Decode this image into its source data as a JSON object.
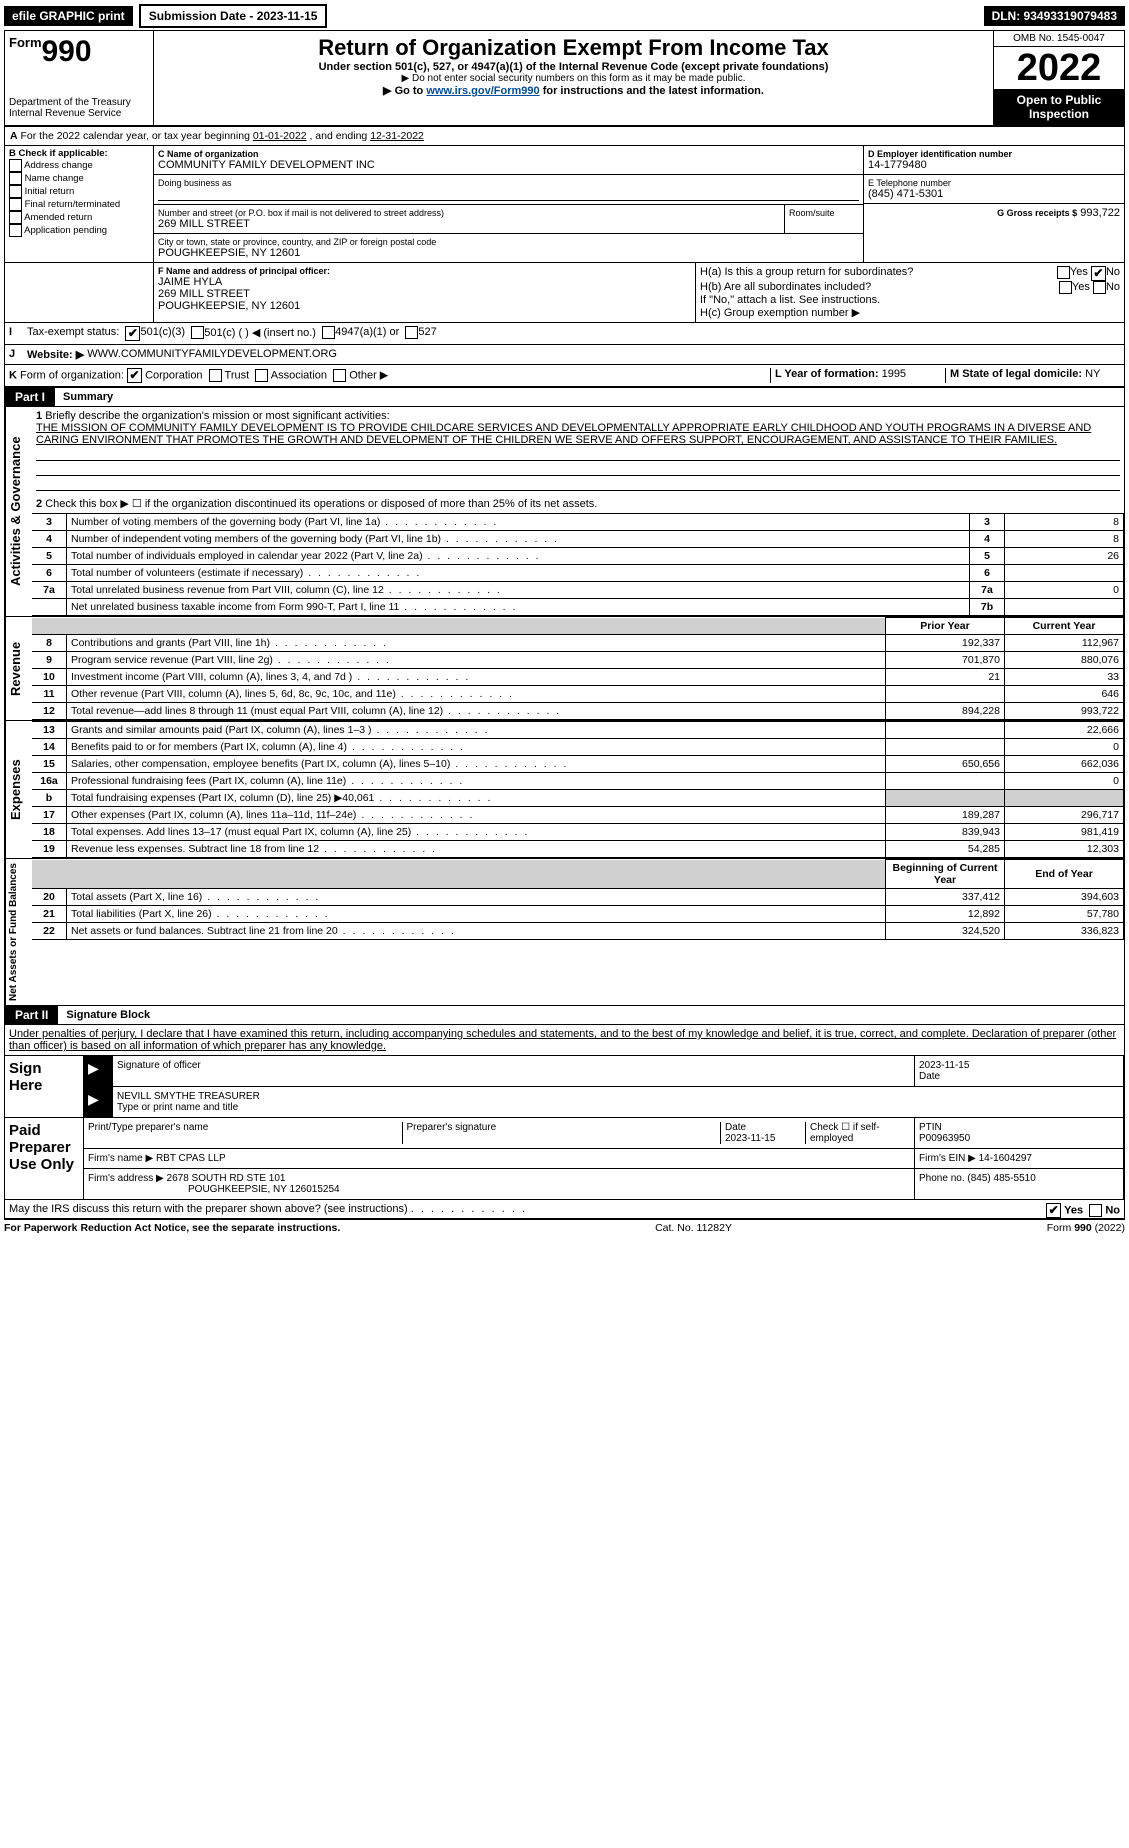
{
  "top": {
    "efile": "efile GRAPHIC print",
    "submission_label": "Submission Date - 2023-11-15",
    "dln": "DLN: 93493319079483"
  },
  "header": {
    "form_word": "Form",
    "form_num": "990",
    "dept": "Department of the Treasury",
    "irs": "Internal Revenue Service",
    "title": "Return of Organization Exempt From Income Tax",
    "sub": "Under section 501(c), 527, or 4947(a)(1) of the Internal Revenue Code (except private foundations)",
    "sub2": "▶ Do not enter social security numbers on this form as it may be made public.",
    "sub3_pre": "▶ Go to ",
    "sub3_link": "www.irs.gov/Form990",
    "sub3_post": " for instructions and the latest information.",
    "omb": "OMB No. 1545-0047",
    "year": "2022",
    "inspect": "Open to Public Inspection"
  },
  "A": {
    "text_pre": "For the 2022 calendar year, or tax year beginning ",
    "begin": "01-01-2022",
    "mid": " , and ending ",
    "end": "12-31-2022"
  },
  "B": {
    "label": "B Check if applicable:",
    "items": [
      "Address change",
      "Name change",
      "Initial return",
      "Final return/terminated",
      "Amended return",
      "Application pending"
    ]
  },
  "C": {
    "name_lbl": "C Name of organization",
    "name": "COMMUNITY FAMILY DEVELOPMENT INC",
    "dba_lbl": "Doing business as",
    "addr_lbl": "Number and street (or P.O. box if mail is not delivered to street address)",
    "room_lbl": "Room/suite",
    "addr": "269 MILL STREET",
    "city_lbl": "City or town, state or province, country, and ZIP or foreign postal code",
    "city": "POUGHKEEPSIE, NY  12601"
  },
  "D": {
    "lbl": "D Employer identification number",
    "val": "14-1779480"
  },
  "E": {
    "lbl": "E Telephone number",
    "val": "(845) 471-5301"
  },
  "G": {
    "lbl": "G Gross receipts $",
    "val": "993,722"
  },
  "F": {
    "lbl": "F Name and address of principal officer:",
    "name": "JAIME HYLA",
    "addr1": "269 MILL STREET",
    "addr2": "POUGHKEEPSIE, NY  12601"
  },
  "H": {
    "a": "H(a) Is this a group return for subordinates?",
    "b": "H(b) Are all subordinates included?",
    "b2": "If \"No,\" attach a list. See instructions.",
    "c": "H(c) Group exemption number ▶",
    "yes": "Yes",
    "no": "No"
  },
  "I": {
    "lbl": "Tax-exempt status:",
    "opts": [
      "501(c)(3)",
      "501(c) (   ) ◀ (insert no.)",
      "4947(a)(1) or",
      "527"
    ]
  },
  "J": {
    "lbl": "Website: ▶",
    "val": "WWW.COMMUNITYFAMILYDEVELOPMENT.ORG"
  },
  "K": {
    "lbl": "Form of organization:",
    "opts": [
      "Corporation",
      "Trust",
      "Association",
      "Other ▶"
    ]
  },
  "L": {
    "lbl": "L Year of formation:",
    "val": "1995"
  },
  "M": {
    "lbl": "M State of legal domicile:",
    "val": "NY"
  },
  "part1": {
    "head": "Part I",
    "title": "Summary",
    "l1": "Briefly describe the organization's mission or most significant activities:",
    "mission": "THE MISSION OF COMMUNITY FAMILY DEVELOPMENT IS TO PROVIDE CHILDCARE SERVICES AND DEVELOPMENTALLY APPROPRIATE EARLY CHILDHOOD AND YOUTH PROGRAMS IN A DIVERSE AND CARING ENVIRONMENT THAT PROMOTES THE GROWTH AND DEVELOPMENT OF THE CHILDREN WE SERVE AND OFFERS SUPPORT, ENCOURAGEMENT, AND ASSISTANCE TO THEIR FAMILIES.",
    "l2": "Check this box ▶ ☐ if the organization discontinued its operations or disposed of more than 25% of its net assets.",
    "vlabels": {
      "ag": "Activities & Governance",
      "rev": "Revenue",
      "exp": "Expenses",
      "na": "Net Assets or Fund Balances"
    },
    "rows_ag": [
      {
        "n": "3",
        "t": "Number of voting members of the governing body (Part VI, line 1a)",
        "box": "3",
        "v": "8"
      },
      {
        "n": "4",
        "t": "Number of independent voting members of the governing body (Part VI, line 1b)",
        "box": "4",
        "v": "8"
      },
      {
        "n": "5",
        "t": "Total number of individuals employed in calendar year 2022 (Part V, line 2a)",
        "box": "5",
        "v": "26"
      },
      {
        "n": "6",
        "t": "Total number of volunteers (estimate if necessary)",
        "box": "6",
        "v": ""
      },
      {
        "n": "7a",
        "t": "Total unrelated business revenue from Part VIII, column (C), line 12",
        "box": "7a",
        "v": "0"
      },
      {
        "n": "",
        "t": "Net unrelated business taxable income from Form 990-T, Part I, line 11",
        "box": "7b",
        "v": ""
      }
    ],
    "hdr_prior": "Prior Year",
    "hdr_curr": "Current Year",
    "rows_rev": [
      {
        "n": "8",
        "t": "Contributions and grants (Part VIII, line 1h)",
        "p": "192,337",
        "c": "112,967"
      },
      {
        "n": "9",
        "t": "Program service revenue (Part VIII, line 2g)",
        "p": "701,870",
        "c": "880,076"
      },
      {
        "n": "10",
        "t": "Investment income (Part VIII, column (A), lines 3, 4, and 7d )",
        "p": "21",
        "c": "33"
      },
      {
        "n": "11",
        "t": "Other revenue (Part VIII, column (A), lines 5, 6d, 8c, 9c, 10c, and 11e)",
        "p": "",
        "c": "646"
      },
      {
        "n": "12",
        "t": "Total revenue—add lines 8 through 11 (must equal Part VIII, column (A), line 12)",
        "p": "894,228",
        "c": "993,722"
      }
    ],
    "rows_exp": [
      {
        "n": "13",
        "t": "Grants and similar amounts paid (Part IX, column (A), lines 1–3 )",
        "p": "",
        "c": "22,666"
      },
      {
        "n": "14",
        "t": "Benefits paid to or for members (Part IX, column (A), line 4)",
        "p": "",
        "c": "0"
      },
      {
        "n": "15",
        "t": "Salaries, other compensation, employee benefits (Part IX, column (A), lines 5–10)",
        "p": "650,656",
        "c": "662,036"
      },
      {
        "n": "16a",
        "t": "Professional fundraising fees (Part IX, column (A), line 11e)",
        "p": "",
        "c": "0"
      },
      {
        "n": "b",
        "t": "Total fundraising expenses (Part IX, column (D), line 25) ▶40,061",
        "p": "shade",
        "c": "shade"
      },
      {
        "n": "17",
        "t": "Other expenses (Part IX, column (A), lines 11a–11d, 11f–24e)",
        "p": "189,287",
        "c": "296,717"
      },
      {
        "n": "18",
        "t": "Total expenses. Add lines 13–17 (must equal Part IX, column (A), line 25)",
        "p": "839,943",
        "c": "981,419"
      },
      {
        "n": "19",
        "t": "Revenue less expenses. Subtract line 18 from line 12",
        "p": "54,285",
        "c": "12,303"
      }
    ],
    "hdr_begin": "Beginning of Current Year",
    "hdr_end": "End of Year",
    "rows_na": [
      {
        "n": "20",
        "t": "Total assets (Part X, line 16)",
        "p": "337,412",
        "c": "394,603"
      },
      {
        "n": "21",
        "t": "Total liabilities (Part X, line 26)",
        "p": "12,892",
        "c": "57,780"
      },
      {
        "n": "22",
        "t": "Net assets or fund balances. Subtract line 21 from line 20",
        "p": "324,520",
        "c": "336,823"
      }
    ]
  },
  "part2": {
    "head": "Part II",
    "title": "Signature Block",
    "decl": "Under penalties of perjury, I declare that I have examined this return, including accompanying schedules and statements, and to the best of my knowledge and belief, it is true, correct, and complete. Declaration of preparer (other than officer) is based on all information of which preparer has any knowledge.",
    "sign_here": "Sign Here",
    "sig_off": "Signature of officer",
    "date": "Date",
    "sig_date": "2023-11-15",
    "name_title": "NEVILL SMYTHE  TREASURER",
    "type_name": "Type or print name and title",
    "paid": "Paid Preparer Use Only",
    "prep_name_lbl": "Print/Type preparer's name",
    "prep_sig_lbl": "Preparer's signature",
    "prep_date_lbl": "Date",
    "prep_date": "2023-11-15",
    "check_lbl": "Check ☐ if self-employed",
    "ptin_lbl": "PTIN",
    "ptin": "P00963950",
    "firm_name_lbl": "Firm's name    ▶",
    "firm_name": "RBT CPAS LLP",
    "firm_ein_lbl": "Firm's EIN ▶",
    "firm_ein": "14-1604297",
    "firm_addr_lbl": "Firm's address ▶",
    "firm_addr": "2678 SOUTH RD STE 101",
    "firm_addr2": "POUGHKEEPSIE, NY  126015254",
    "phone_lbl": "Phone no.",
    "phone": "(845) 485-5510",
    "discuss": "May the IRS discuss this return with the preparer shown above? (see instructions)"
  },
  "footer": {
    "pra": "For Paperwork Reduction Act Notice, see the separate instructions.",
    "cat": "Cat. No. 11282Y",
    "form": "Form 990 (2022)"
  }
}
